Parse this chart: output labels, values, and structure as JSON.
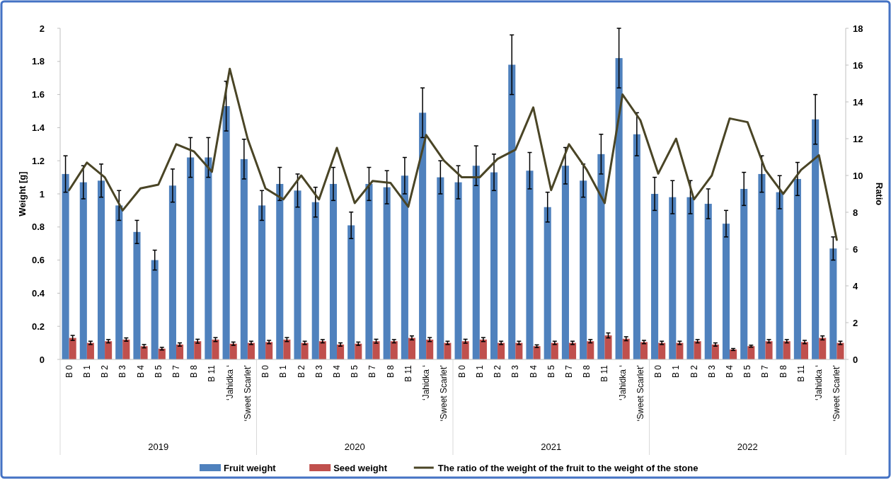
{
  "chart_data": {
    "type": "bar",
    "ylabel": "Weight [g]",
    "y2label": "Ratio",
    "categories": [
      "B 0",
      "B 1",
      "B 2",
      "B 3",
      "B 4",
      "B 5",
      "B 7",
      "B 8",
      "B 11",
      "‘Jahidka ‘",
      "‘Sweet Scarlet’",
      "B 0",
      "B 1",
      "B 2",
      "B 3",
      "B 4",
      "B 5",
      "B 7",
      "B 8",
      "B 11",
      "‘Jahidka ‘",
      "‘Sweet Scarlet’",
      "B 0",
      "B 1",
      "B 2",
      "B 3",
      "B 4",
      "B 5",
      "B 7",
      "B 8",
      "B 11",
      "‘Jahidka ‘",
      "‘Sweet Scarlet’",
      "B 0",
      "B 1",
      "B 2",
      "B 3",
      "B 4",
      "B 5",
      "B 7",
      "B 8",
      "B 11",
      "‘Jahidka ‘",
      "‘Sweet Scarlet’"
    ],
    "annotations": [
      "2019",
      "2020",
      "2021",
      "2022"
    ],
    "series": [
      {
        "name": "Fruit weight",
        "color": "#4f81bd",
        "values": [
          1.12,
          1.07,
          1.08,
          0.93,
          0.77,
          0.6,
          1.05,
          1.22,
          1.22,
          1.53,
          1.21,
          0.93,
          1.06,
          1.02,
          0.95,
          1.06,
          0.81,
          1.06,
          1.04,
          1.11,
          1.49,
          1.1,
          1.07,
          1.17,
          1.13,
          1.78,
          1.14,
          0.92,
          1.17,
          1.08,
          1.24,
          1.82,
          1.36,
          1.0,
          0.98,
          0.98,
          0.94,
          0.82,
          1.03,
          1.12,
          1.01,
          1.09,
          1.45,
          0.67
        ],
        "errors": [
          0.11,
          0.1,
          0.1,
          0.09,
          0.07,
          0.06,
          0.1,
          0.12,
          0.12,
          0.15,
          0.12,
          0.09,
          0.1,
          0.1,
          0.09,
          0.1,
          0.08,
          0.1,
          0.1,
          0.11,
          0.15,
          0.1,
          0.1,
          0.12,
          0.11,
          0.18,
          0.11,
          0.09,
          0.11,
          0.1,
          0.12,
          0.18,
          0.13,
          0.1,
          0.1,
          0.1,
          0.09,
          0.08,
          0.1,
          0.11,
          0.1,
          0.1,
          0.15,
          0.07
        ]
      },
      {
        "name": "Seed weight",
        "color": "#c0504d",
        "values": [
          0.13,
          0.1,
          0.11,
          0.12,
          0.08,
          0.065,
          0.09,
          0.11,
          0.12,
          0.095,
          0.1,
          0.105,
          0.12,
          0.1,
          0.11,
          0.09,
          0.095,
          0.11,
          0.11,
          0.13,
          0.12,
          0.1,
          0.11,
          0.12,
          0.1,
          0.1,
          0.08,
          0.1,
          0.1,
          0.11,
          0.145,
          0.125,
          0.105,
          0.1,
          0.1,
          0.11,
          0.09,
          0.06,
          0.08,
          0.11,
          0.11,
          0.105,
          0.13,
          0.1
        ],
        "errors": [
          0.015,
          0.01,
          0.01,
          0.01,
          0.01,
          0.008,
          0.01,
          0.012,
          0.012,
          0.01,
          0.01,
          0.01,
          0.012,
          0.01,
          0.01,
          0.01,
          0.01,
          0.012,
          0.01,
          0.012,
          0.012,
          0.01,
          0.012,
          0.012,
          0.01,
          0.01,
          0.008,
          0.01,
          0.01,
          0.01,
          0.015,
          0.012,
          0.01,
          0.01,
          0.01,
          0.01,
          0.01,
          0.006,
          0.006,
          0.01,
          0.01,
          0.01,
          0.012,
          0.01
        ]
      },
      {
        "name": "The ratio of the weight of the fruit to the weight of the stone",
        "type": "line",
        "axis": "y2",
        "color": "#4a4526",
        "values": [
          9.2,
          10.7,
          9.9,
          8.1,
          9.3,
          9.5,
          11.7,
          11.3,
          10.2,
          15.8,
          12.0,
          9.3,
          8.7,
          10.0,
          8.7,
          11.5,
          8.5,
          9.7,
          9.6,
          8.3,
          12.2,
          10.8,
          9.9,
          9.9,
          10.9,
          11.4,
          13.7,
          9.2,
          11.7,
          10.3,
          8.5,
          14.4,
          13.0,
          10.1,
          12.0,
          8.7,
          10.0,
          13.1,
          12.9,
          10.3,
          9.0,
          10.3,
          11.1,
          6.5
        ]
      }
    ],
    "ylim": [
      0,
      2
    ],
    "yticks": [
      0,
      0.2,
      0.4,
      0.6,
      0.8,
      1,
      1.2,
      1.4,
      1.6,
      1.8,
      2
    ],
    "y2lim": [
      0,
      18
    ],
    "y2ticks": [
      0,
      2,
      4,
      6,
      8,
      10,
      12,
      14,
      16,
      18
    ],
    "legend": "bottom",
    "grid": false
  }
}
